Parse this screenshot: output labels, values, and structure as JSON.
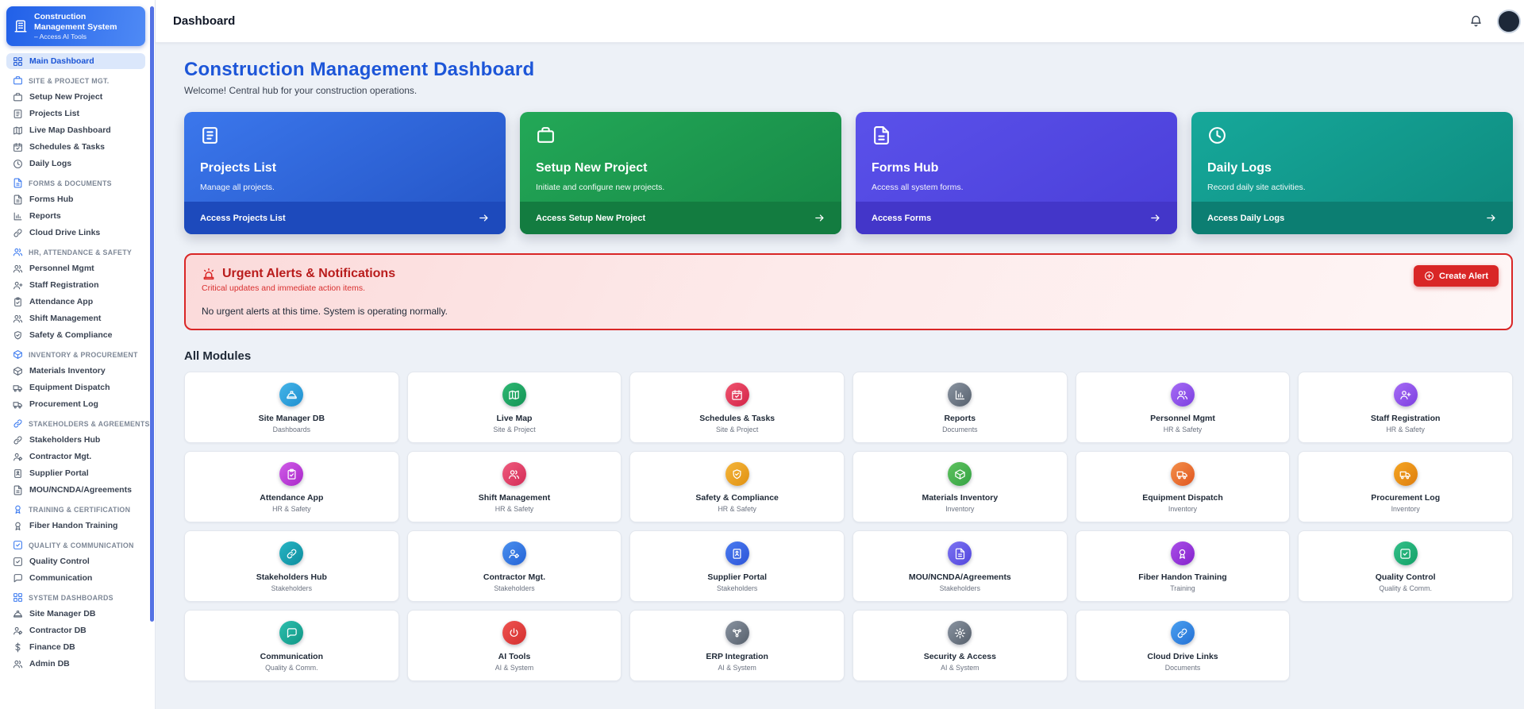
{
  "brand": {
    "title": "Construction Management System",
    "subtitle": "– Access AI Tools",
    "icon": "building"
  },
  "topbar": {
    "title": "Dashboard",
    "bell_icon": "bell"
  },
  "sidebar": {
    "active_item": {
      "label": "Main Dashboard",
      "icon": "grid"
    },
    "sections": [
      {
        "label": "SITE & PROJECT MGT.",
        "icon": "briefcase",
        "items": [
          {
            "label": "Setup New Project",
            "icon": "briefcase"
          },
          {
            "label": "Projects List",
            "icon": "clipboard"
          },
          {
            "label": "Live Map Dashboard",
            "icon": "map"
          },
          {
            "label": "Schedules & Tasks",
            "icon": "calendar"
          },
          {
            "label": "Daily Logs",
            "icon": "clock"
          }
        ]
      },
      {
        "label": "FORMS & DOCUMENTS",
        "icon": "file",
        "items": [
          {
            "label": "Forms Hub",
            "icon": "file"
          },
          {
            "label": "Reports",
            "icon": "chart"
          },
          {
            "label": "Cloud Drive Links",
            "icon": "link"
          }
        ]
      },
      {
        "label": "HR, ATTENDANCE & SAFETY",
        "icon": "users",
        "items": [
          {
            "label": "Personnel Mgmt",
            "icon": "users"
          },
          {
            "label": "Staff Registration",
            "icon": "user-plus"
          },
          {
            "label": "Attendance App",
            "icon": "clipboard-check"
          },
          {
            "label": "Shift Management",
            "icon": "users"
          },
          {
            "label": "Safety & Compliance",
            "icon": "shield"
          }
        ]
      },
      {
        "label": "INVENTORY & PROCUREMENT",
        "icon": "box",
        "items": [
          {
            "label": "Materials Inventory",
            "icon": "box"
          },
          {
            "label": "Equipment Dispatch",
            "icon": "truck"
          },
          {
            "label": "Procurement Log",
            "icon": "truck"
          }
        ]
      },
      {
        "label": "STAKEHOLDERS & AGREEMENTS",
        "icon": "link",
        "items": [
          {
            "label": "Stakeholders Hub",
            "icon": "link"
          },
          {
            "label": "Contractor Mgt.",
            "icon": "user-gear"
          },
          {
            "label": "Supplier Portal",
            "icon": "id-badge"
          },
          {
            "label": "MOU/NCNDA/Agreements",
            "icon": "file"
          }
        ]
      },
      {
        "label": "TRAINING & CERTIFICATION",
        "icon": "medal",
        "items": [
          {
            "label": "Fiber Handon Training",
            "icon": "medal"
          }
        ]
      },
      {
        "label": "QUALITY & COMMUNICATION",
        "icon": "check-square",
        "items": [
          {
            "label": "Quality Control",
            "icon": "check-square"
          },
          {
            "label": "Communication",
            "icon": "chat"
          }
        ]
      },
      {
        "label": "SYSTEM DASHBOARDS",
        "icon": "grid",
        "items": [
          {
            "label": "Site Manager DB",
            "icon": "hard-hat"
          },
          {
            "label": "Contractor DB",
            "icon": "user-gear"
          },
          {
            "label": "Finance DB",
            "icon": "dollar"
          },
          {
            "label": "Admin DB",
            "icon": "users"
          }
        ]
      }
    ]
  },
  "page": {
    "title": "Construction Management Dashboard",
    "subtitle": "Welcome! Central hub for your construction operations."
  },
  "hero_cards": [
    {
      "title": "Projects List",
      "description": "Manage all projects.",
      "cta": "Access Projects List",
      "icon": "clipboard",
      "arrow_icon": "arrow-right",
      "bg_top": "#3b77ec",
      "bg_bottom": "#2353c4",
      "footer_bg": "#1d4abc"
    },
    {
      "title": "Setup New Project",
      "description": "Initiate and configure new projects.",
      "cta": "Access Setup New Project",
      "icon": "briefcase",
      "arrow_icon": "arrow-right",
      "bg_top": "#23a857",
      "bg_bottom": "#168746",
      "footer_bg": "#137c40"
    },
    {
      "title": "Forms Hub",
      "description": "Access all system forms.",
      "cta": "Access Forms",
      "icon": "file",
      "arrow_icon": "arrow-right",
      "bg_top": "#5a51ea",
      "bg_bottom": "#4a3ed8",
      "footer_bg": "#4336c9"
    },
    {
      "title": "Daily Logs",
      "description": "Record daily site activities.",
      "cta": "Access Daily Logs",
      "icon": "clock",
      "arrow_icon": "arrow-right",
      "bg_top": "#16a89a",
      "bg_bottom": "#0e8a7e",
      "footer_bg": "#0c7e72"
    }
  ],
  "alerts": {
    "icon": "siren",
    "title": "Urgent Alerts & Notifications",
    "subtitle": "Critical updates and immediate action items.",
    "message": "No urgent alerts at this time. System is operating normally.",
    "button_label": "Create Alert",
    "button_icon": "plus-circle",
    "border_color": "#d92626"
  },
  "modules": {
    "heading": "All Modules",
    "items": [
      {
        "label": "Site Manager DB",
        "category": "Dashboards",
        "icon": "hard-hat",
        "c1": "#45b5e8",
        "c2": "#1f8fd0"
      },
      {
        "label": "Live Map",
        "category": "Site & Project",
        "icon": "map",
        "c1": "#2eb873",
        "c2": "#149355"
      },
      {
        "label": "Schedules & Tasks",
        "category": "Site & Project",
        "icon": "calendar",
        "c1": "#f05570",
        "c2": "#d32347"
      },
      {
        "label": "Reports",
        "category": "Documents",
        "icon": "chart",
        "c1": "#8a94a1",
        "c2": "#57616e"
      },
      {
        "label": "Personnel Mgmt",
        "category": "HR & Safety",
        "icon": "users",
        "c1": "#a66cf5",
        "c2": "#7c3fe0"
      },
      {
        "label": "Staff Registration",
        "category": "HR & Safety",
        "icon": "user-plus",
        "c1": "#a66cf5",
        "c2": "#7c3fe0"
      },
      {
        "label": "Attendance App",
        "category": "HR & Safety",
        "icon": "clipboard-check",
        "c1": "#d05ce8",
        "c2": "#a928c9"
      },
      {
        "label": "Shift Management",
        "category": "HR & Safety",
        "icon": "users",
        "c1": "#ef5c7e",
        "c2": "#d32b56"
      },
      {
        "label": "Safety & Compliance",
        "category": "HR & Safety",
        "icon": "shield",
        "c1": "#f5b63c",
        "c2": "#e09112"
      },
      {
        "label": "Materials Inventory",
        "category": "Inventory",
        "icon": "box",
        "c1": "#5fc25f",
        "c2": "#35a344"
      },
      {
        "label": "Equipment Dispatch",
        "category": "Inventory",
        "icon": "truck",
        "c1": "#f3904a",
        "c2": "#e05520"
      },
      {
        "label": "Procurement Log",
        "category": "Inventory",
        "icon": "truck",
        "c1": "#f5a623",
        "c2": "#dd7d0f"
      },
      {
        "label": "Stakeholders Hub",
        "category": "Stakeholders",
        "icon": "link",
        "c1": "#27b5c4",
        "c2": "#0e8d9e"
      },
      {
        "label": "Contractor Mgt.",
        "category": "Stakeholders",
        "icon": "user-gear",
        "c1": "#4a90ee",
        "c2": "#2563d6"
      },
      {
        "label": "Supplier Portal",
        "category": "Stakeholders",
        "icon": "id-badge",
        "c1": "#4a7bf0",
        "c2": "#2d55d8"
      },
      {
        "label": "MOU/NCNDA/Agreements",
        "category": "Stakeholders",
        "icon": "file",
        "c1": "#7d74f2",
        "c2": "#5246dd"
      },
      {
        "label": "Fiber Handon Training",
        "category": "Training",
        "icon": "medal",
        "c1": "#aa4fe8",
        "c2": "#8422cc"
      },
      {
        "label": "Quality Control",
        "category": "Quality & Comm.",
        "icon": "check-square",
        "c1": "#34c08a",
        "c2": "#12a066"
      },
      {
        "label": "Communication",
        "category": "Quality & Comm.",
        "icon": "chat",
        "c1": "#2dbfae",
        "c2": "#119685"
      },
      {
        "label": "AI Tools",
        "category": "AI & System",
        "icon": "power",
        "c1": "#ef5350",
        "c2": "#d32f2f"
      },
      {
        "label": "ERP Integration",
        "category": "AI & System",
        "icon": "nodes",
        "c1": "#8a94a1",
        "c2": "#565f6b"
      },
      {
        "label": "Security & Access",
        "category": "AI & System",
        "icon": "gear",
        "c1": "#8a94a1",
        "c2": "#565f6b"
      },
      {
        "label": "Cloud Drive Links",
        "category": "Documents",
        "icon": "link",
        "c1": "#4aa0f0",
        "c2": "#2470d4"
      }
    ]
  }
}
